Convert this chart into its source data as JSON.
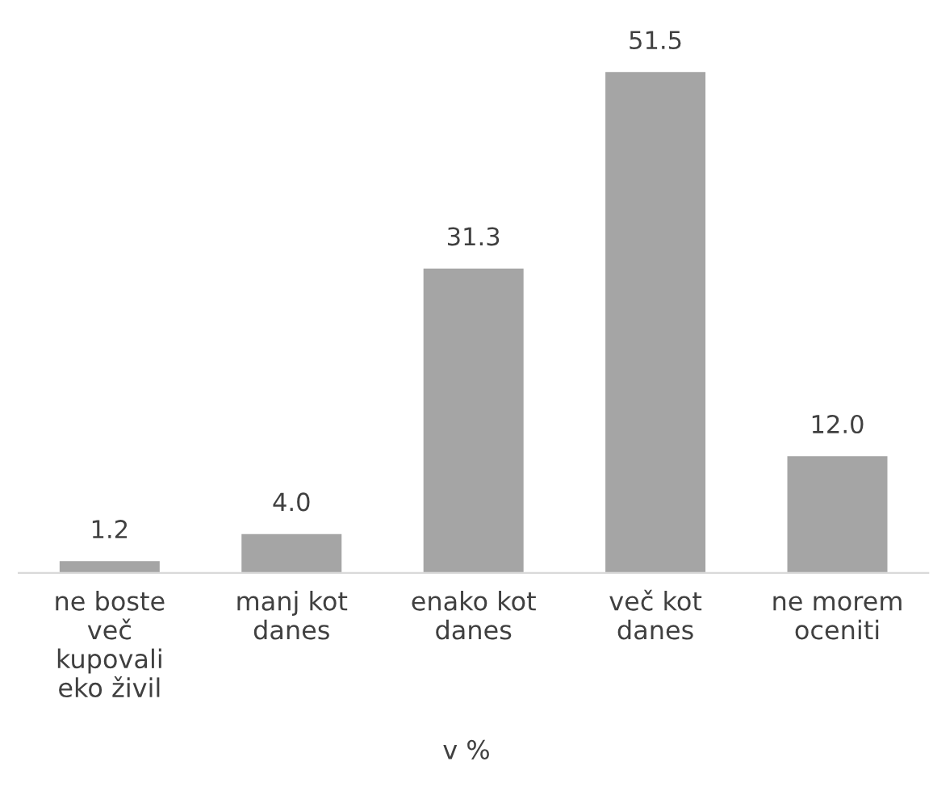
{
  "chart_data": {
    "type": "bar",
    "categories": [
      "ne boste\nveč\nkupovali\neko živil",
      "manj kot\ndanes",
      "enako kot\ndanes",
      "več kot\ndanes",
      "ne morem\noceniti"
    ],
    "values": [
      1.2,
      4.0,
      31.3,
      51.5,
      12.0
    ],
    "value_labels": [
      "1.2",
      "4.0",
      "31.3",
      "51.5",
      "12.0"
    ],
    "color": "#a5a5a5",
    "xlabel": "v %",
    "grid": false,
    "legend": false
  }
}
